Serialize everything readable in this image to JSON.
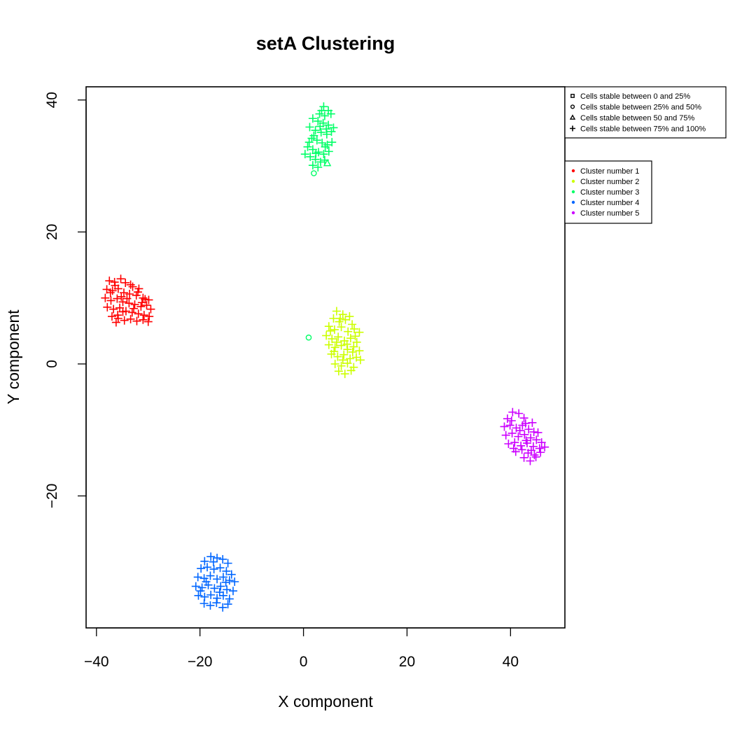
{
  "chart_data": {
    "type": "scatter",
    "title": "setA  Clustering",
    "xlabel": "X component",
    "ylabel": "Y component",
    "xlim": [
      -42,
      50.5
    ],
    "ylim": [
      -40,
      42
    ],
    "xticks": [
      -40,
      -20,
      0,
      20,
      40
    ],
    "yticks": [
      -20,
      0,
      20,
      40
    ],
    "xtick_labels": [
      "−40",
      "−20",
      "0",
      "20",
      "40"
    ],
    "ytick_labels": [
      "−20",
      "0",
      "20",
      "40"
    ],
    "grid": false,
    "stability_legend": {
      "placement": "outside-top-right",
      "entries": [
        {
          "label": "Cells stable between 0 and 25%",
          "marker": "square"
        },
        {
          "label": "Cells stable between 25% and 50%",
          "marker": "circle"
        },
        {
          "label": "Cells stable between 50 and 75%",
          "marker": "triangle"
        },
        {
          "label": "Cells stable between 75% and 100%",
          "marker": "plus"
        }
      ]
    },
    "cluster_legend": {
      "placement": "outside-right",
      "entries": [
        {
          "label": "Cluster number 1",
          "color": "#FF0000"
        },
        {
          "label": "Cluster number 2",
          "color": "#CCFF00"
        },
        {
          "label": "Cluster number 3",
          "color": "#00FF66"
        },
        {
          "label": "Cluster number 4",
          "color": "#0066FF"
        },
        {
          "label": "Cluster number 5",
          "color": "#CC00FF"
        }
      ]
    },
    "series": [
      {
        "cluster": 1,
        "color": "#FF0000",
        "points": [
          [
            -37.5,
            12.6
          ],
          [
            -36.5,
            12.4
          ],
          [
            -35.3,
            12.9
          ],
          [
            -34.4,
            12.3
          ],
          [
            -33.0,
            11.7
          ],
          [
            -31.8,
            11.4
          ],
          [
            -38.0,
            11.3
          ],
          [
            -36.9,
            11.1
          ],
          [
            -35.8,
            11.4
          ],
          [
            -34.7,
            10.8
          ],
          [
            -33.6,
            10.6
          ],
          [
            -32.3,
            10.4
          ],
          [
            -31.0,
            10.0
          ],
          [
            -29.9,
            9.7
          ],
          [
            -38.3,
            10.0
          ],
          [
            -37.2,
            9.6
          ],
          [
            -36.0,
            9.9
          ],
          [
            -34.9,
            9.4
          ],
          [
            -33.7,
            9.2
          ],
          [
            -32.6,
            9.0
          ],
          [
            -31.4,
            8.7
          ],
          [
            -30.3,
            8.9
          ],
          [
            -29.5,
            8.3
          ],
          [
            -37.9,
            8.6
          ],
          [
            -36.7,
            8.3
          ],
          [
            -35.5,
            8.5
          ],
          [
            -34.3,
            8.0
          ],
          [
            -33.1,
            7.8
          ],
          [
            -31.9,
            7.6
          ],
          [
            -30.8,
            7.4
          ],
          [
            -29.8,
            7.2
          ],
          [
            -37.0,
            7.2
          ],
          [
            -35.8,
            6.9
          ],
          [
            -34.6,
            6.6
          ],
          [
            -33.4,
            6.8
          ],
          [
            -32.2,
            6.5
          ],
          [
            -31.0,
            6.7
          ],
          [
            -30.0,
            6.4
          ],
          [
            -36.2,
            6.3
          ],
          [
            -34.9,
            7.9
          ],
          [
            -32.8,
            8.4
          ],
          [
            -31.2,
            9.3
          ],
          [
            -35.2,
            10.2
          ],
          [
            -33.4,
            12.0
          ],
          [
            -30.6,
            9.8
          ],
          [
            -37.3,
            10.8
          ],
          [
            -35.9,
            7.4
          ],
          [
            -34.1,
            9.9
          ],
          [
            -32.0,
            10.9
          ],
          [
            -36.4,
            11.9
          ]
        ]
      },
      {
        "cluster": 2,
        "color": "#CCFF00",
        "points": [
          [
            6.4,
            8.0
          ],
          [
            7.6,
            7.5
          ],
          [
            5.8,
            6.9
          ],
          [
            6.9,
            6.4
          ],
          [
            8.1,
            6.7
          ],
          [
            9.4,
            6.0
          ],
          [
            4.9,
            5.7
          ],
          [
            6.0,
            5.2
          ],
          [
            7.3,
            5.6
          ],
          [
            8.6,
            4.9
          ],
          [
            9.8,
            5.3
          ],
          [
            10.8,
            4.8
          ],
          [
            4.4,
            4.3
          ],
          [
            5.5,
            3.8
          ],
          [
            6.7,
            4.1
          ],
          [
            7.9,
            3.5
          ],
          [
            9.1,
            3.9
          ],
          [
            10.3,
            3.3
          ],
          [
            4.9,
            2.9
          ],
          [
            6.1,
            2.5
          ],
          [
            7.3,
            2.8
          ],
          [
            8.5,
            2.2
          ],
          [
            9.7,
            2.6
          ],
          [
            10.8,
            2.0
          ],
          [
            5.4,
            1.5
          ],
          [
            6.6,
            1.1
          ],
          [
            7.8,
            1.4
          ],
          [
            9.0,
            0.8
          ],
          [
            10.2,
            1.0
          ],
          [
            11.0,
            0.6
          ],
          [
            6.1,
            0.0
          ],
          [
            7.3,
            -0.3
          ],
          [
            8.5,
            0.1
          ],
          [
            9.7,
            -0.5
          ],
          [
            6.8,
            -1.1
          ],
          [
            8.0,
            -1.5
          ],
          [
            9.2,
            -1.0
          ],
          [
            7.1,
            6.9
          ],
          [
            5.2,
            5.0
          ],
          [
            8.4,
            3.0
          ],
          [
            6.4,
            3.3
          ],
          [
            9.5,
            1.8
          ],
          [
            7.6,
            0.6
          ],
          [
            10.0,
            4.2
          ],
          [
            8.9,
            7.2
          ],
          [
            5.9,
            1.9
          ]
        ]
      },
      {
        "cluster": 3,
        "color": "#00FF66",
        "points": [
          [
            3.9,
            39.0
          ],
          [
            4.8,
            38.4
          ],
          [
            3.1,
            37.9
          ],
          [
            4.1,
            37.6
          ],
          [
            5.3,
            37.9
          ],
          [
            1.8,
            37.2
          ],
          [
            2.8,
            36.8
          ],
          [
            3.8,
            36.5
          ],
          [
            4.8,
            36.2
          ],
          [
            5.8,
            35.8
          ],
          [
            1.2,
            35.9
          ],
          [
            2.3,
            35.4
          ],
          [
            3.4,
            35.1
          ],
          [
            4.5,
            34.8
          ],
          [
            5.4,
            35.2
          ],
          [
            1.6,
            34.2
          ],
          [
            2.6,
            33.9
          ],
          [
            3.6,
            33.5
          ],
          [
            4.6,
            33.2
          ],
          [
            5.5,
            33.6
          ],
          [
            0.8,
            32.9
          ],
          [
            1.8,
            32.5
          ],
          [
            2.9,
            32.1
          ],
          [
            3.9,
            31.8
          ],
          [
            4.9,
            32.2
          ],
          [
            0.3,
            31.8
          ],
          [
            1.3,
            31.4
          ],
          [
            2.3,
            31.0
          ],
          [
            3.3,
            30.6
          ],
          [
            4.1,
            30.9
          ],
          [
            1.8,
            30.1
          ],
          [
            2.8,
            29.8
          ],
          [
            3.2,
            36.0
          ],
          [
            2.0,
            34.6
          ],
          [
            4.2,
            32.9
          ],
          [
            1.1,
            33.6
          ],
          [
            3.5,
            38.4
          ],
          [
            2.4,
            31.9
          ],
          [
            4.4,
            35.6
          ]
        ],
        "other_points": [
          {
            "x": 2.0,
            "y": 28.9,
            "marker": "circle"
          },
          {
            "x": 1.0,
            "y": 4.0,
            "marker": "circle"
          },
          {
            "x": 4.6,
            "y": 30.4,
            "marker": "triangle"
          }
        ]
      },
      {
        "cluster": 4,
        "color": "#0066FF",
        "points": [
          [
            -17.9,
            -29.2
          ],
          [
            -16.7,
            -29.4
          ],
          [
            -15.6,
            -29.6
          ],
          [
            -19.1,
            -29.9
          ],
          [
            -14.6,
            -30.2
          ],
          [
            -19.8,
            -31.0
          ],
          [
            -18.6,
            -30.8
          ],
          [
            -17.3,
            -31.1
          ],
          [
            -16.1,
            -30.9
          ],
          [
            -14.9,
            -31.4
          ],
          [
            -13.9,
            -31.9
          ],
          [
            -20.4,
            -32.3
          ],
          [
            -19.2,
            -32.5
          ],
          [
            -18.0,
            -32.1
          ],
          [
            -16.7,
            -32.6
          ],
          [
            -15.5,
            -32.3
          ],
          [
            -14.3,
            -32.8
          ],
          [
            -13.3,
            -33.0
          ],
          [
            -20.8,
            -33.7
          ],
          [
            -19.6,
            -33.9
          ],
          [
            -18.4,
            -33.5
          ],
          [
            -17.2,
            -34.0
          ],
          [
            -16.0,
            -33.7
          ],
          [
            -14.8,
            -34.2
          ],
          [
            -13.6,
            -34.4
          ],
          [
            -20.3,
            -35.1
          ],
          [
            -19.1,
            -35.3
          ],
          [
            -17.9,
            -35.0
          ],
          [
            -16.7,
            -35.5
          ],
          [
            -15.5,
            -35.1
          ],
          [
            -14.3,
            -35.6
          ],
          [
            -19.2,
            -36.3
          ],
          [
            -18.0,
            -36.6
          ],
          [
            -16.8,
            -36.2
          ],
          [
            -15.6,
            -36.9
          ],
          [
            -14.6,
            -36.4
          ],
          [
            -17.4,
            -30.0
          ],
          [
            -18.8,
            -33.0
          ],
          [
            -16.2,
            -34.6
          ],
          [
            -15.0,
            -33.1
          ],
          [
            -19.9,
            -34.4
          ]
        ]
      },
      {
        "cluster": 5,
        "color": "#CC00FF",
        "points": [
          [
            40.4,
            -7.3
          ],
          [
            41.6,
            -7.5
          ],
          [
            42.6,
            -8.2
          ],
          [
            39.4,
            -8.3
          ],
          [
            38.8,
            -9.5
          ],
          [
            39.9,
            -9.3
          ],
          [
            41.1,
            -9.7
          ],
          [
            42.3,
            -9.3
          ],
          [
            43.5,
            -9.9
          ],
          [
            44.5,
            -10.3
          ],
          [
            39.1,
            -10.8
          ],
          [
            40.3,
            -10.5
          ],
          [
            41.5,
            -11.0
          ],
          [
            42.7,
            -10.7
          ],
          [
            43.9,
            -11.2
          ],
          [
            45.0,
            -11.5
          ],
          [
            46.0,
            -11.9
          ],
          [
            39.6,
            -12.1
          ],
          [
            40.8,
            -11.9
          ],
          [
            42.0,
            -12.4
          ],
          [
            43.2,
            -12.0
          ],
          [
            44.4,
            -12.5
          ],
          [
            45.6,
            -12.8
          ],
          [
            46.6,
            -12.6
          ],
          [
            41.0,
            -13.3
          ],
          [
            42.2,
            -13.0
          ],
          [
            43.4,
            -13.5
          ],
          [
            44.6,
            -13.8
          ],
          [
            45.8,
            -13.4
          ],
          [
            42.6,
            -14.2
          ],
          [
            43.8,
            -14.7
          ],
          [
            44.9,
            -14.1
          ],
          [
            40.2,
            -8.6
          ],
          [
            41.8,
            -10.1
          ],
          [
            43.0,
            -11.6
          ],
          [
            44.2,
            -8.9
          ],
          [
            45.3,
            -10.4
          ],
          [
            42.9,
            -9.0
          ],
          [
            40.6,
            -12.8
          ],
          [
            44.0,
            -13.1
          ]
        ]
      }
    ]
  }
}
